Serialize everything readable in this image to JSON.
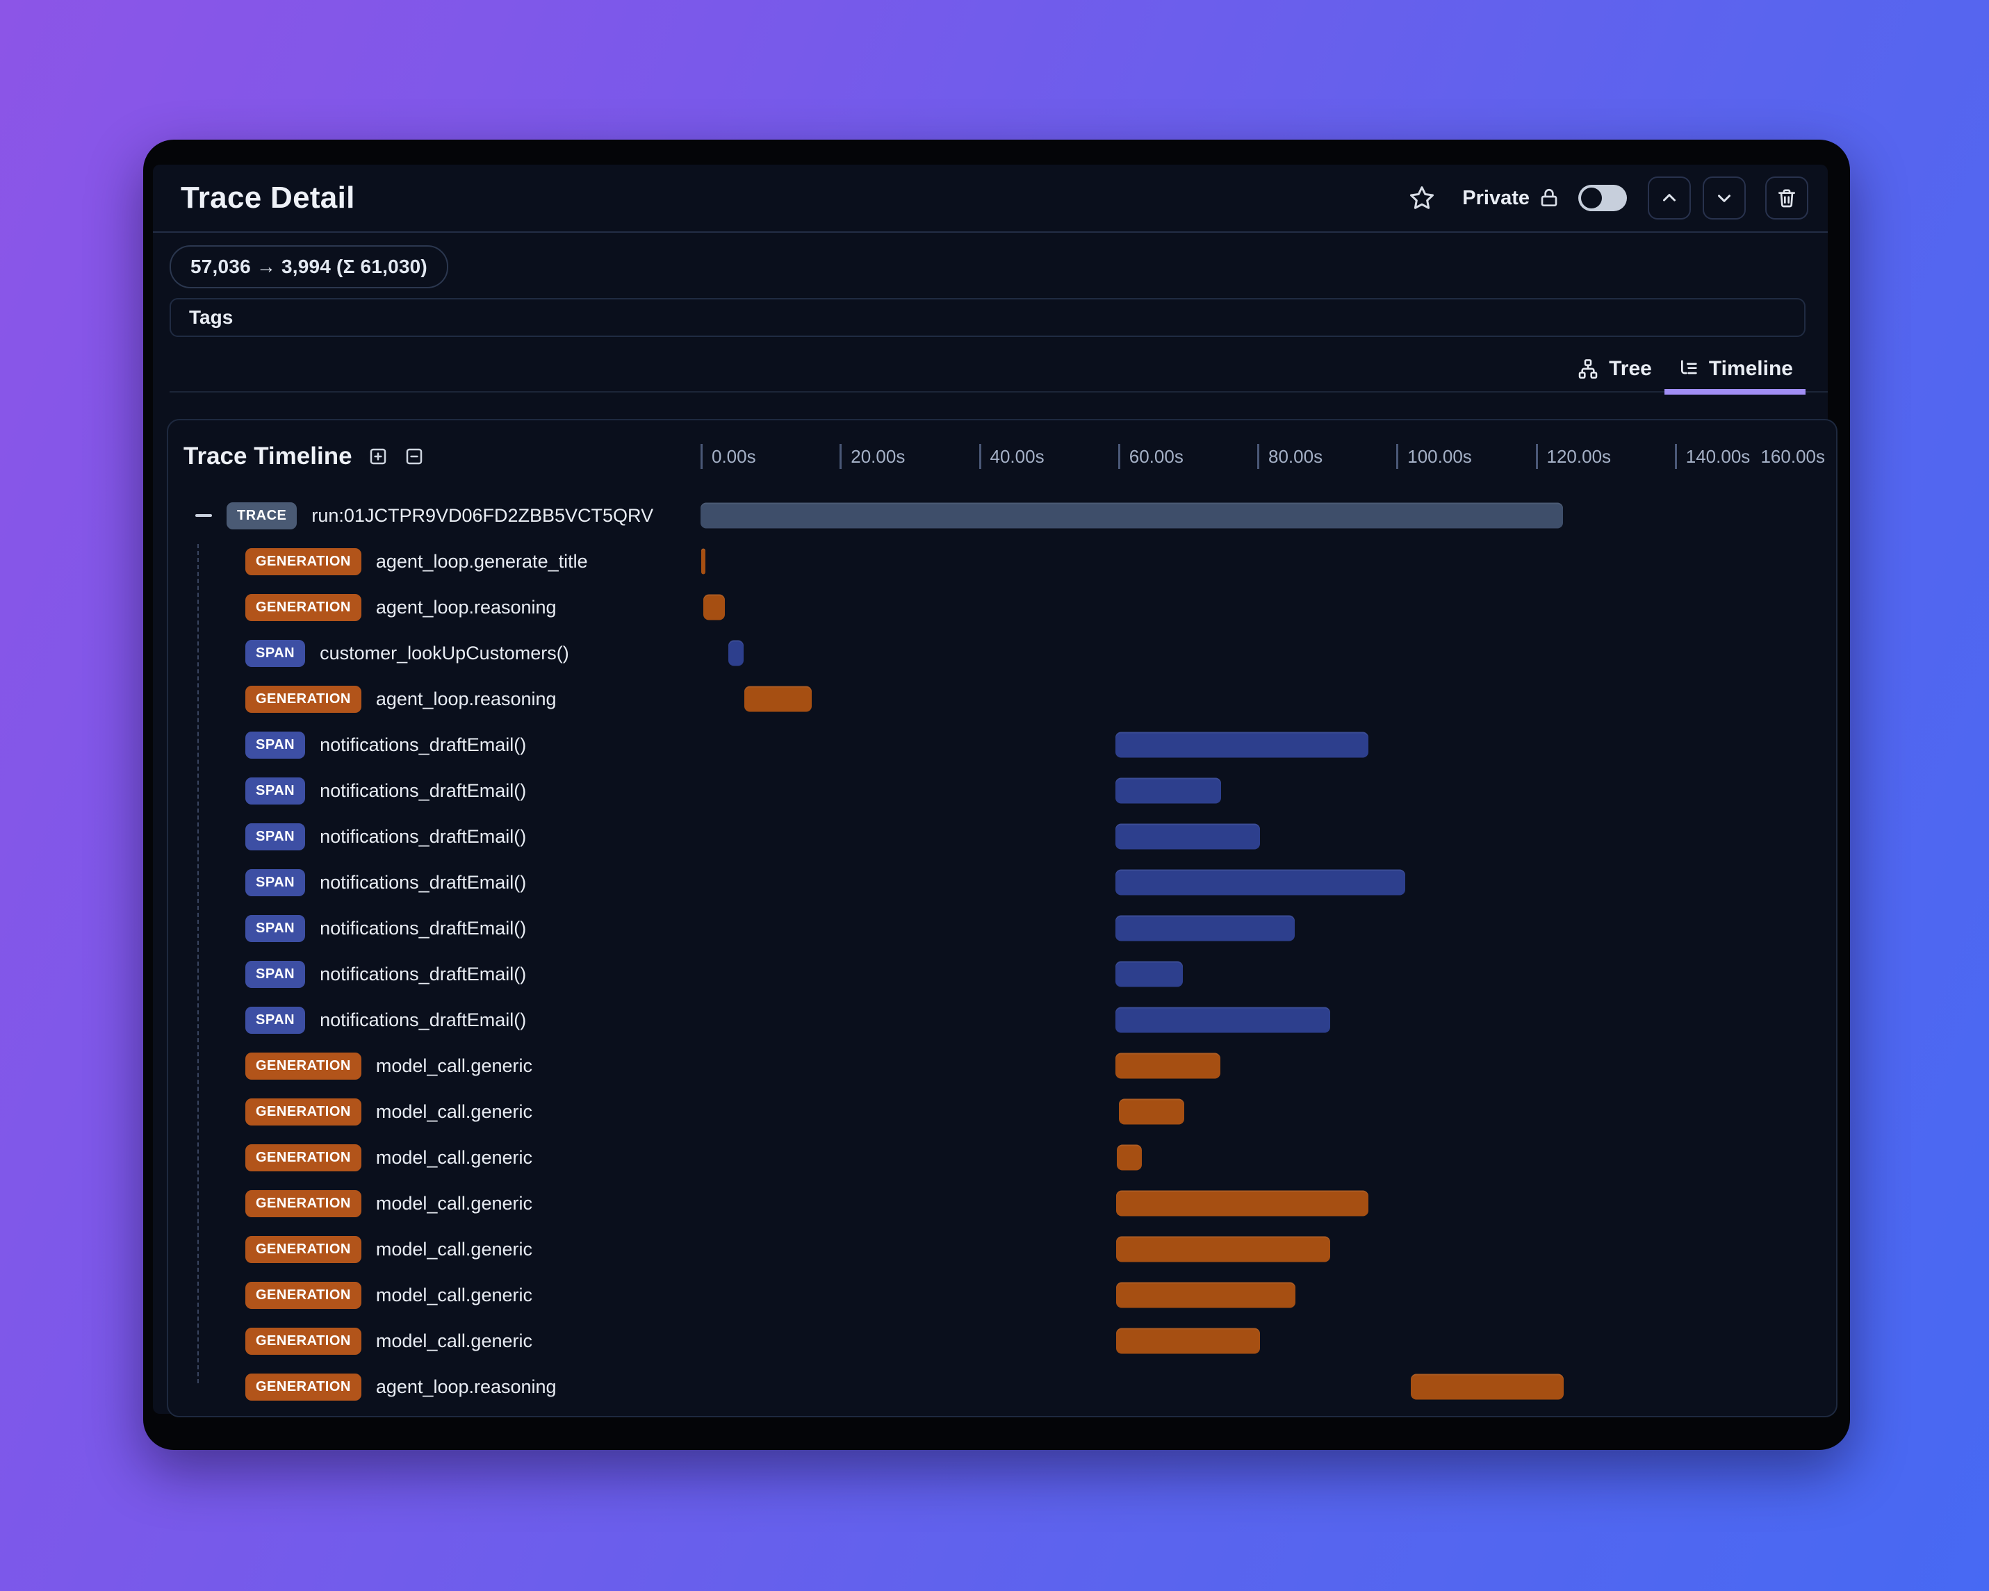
{
  "header": {
    "title": "Trace Detail",
    "privacy_label": "Private",
    "privacy_toggle_state": "off"
  },
  "token_badge": "57,036 → 3,994 (Σ 61,030)",
  "tags": {
    "label": "Tags"
  },
  "view_tabs": [
    {
      "label": "Tree",
      "icon": "tree-icon",
      "active": false
    },
    {
      "label": "Timeline",
      "icon": "list-tree-icon",
      "active": true
    }
  ],
  "timeline": {
    "title": "Trace Timeline",
    "controls": [
      "expand-all-icon",
      "collapse-all-icon"
    ],
    "axis": {
      "total_s": 160,
      "ticks": [
        {
          "t": 0,
          "label": "0.00s"
        },
        {
          "t": 20,
          "label": "20.00s"
        },
        {
          "t": 40,
          "label": "40.00s"
        },
        {
          "t": 60,
          "label": "60.00s"
        },
        {
          "t": 80,
          "label": "80.00s"
        },
        {
          "t": 100,
          "label": "100.00s"
        },
        {
          "t": 120,
          "label": "120.00s"
        },
        {
          "t": 140,
          "label": "140.00s"
        },
        {
          "t": 160,
          "label": "160.00s"
        }
      ]
    },
    "rows": [
      {
        "type": "trace",
        "badge": "TRACE",
        "name": "run:01JCTPR9VD06FD2ZBB5VCT5QRV",
        "start_s": 0,
        "end_s": 123.9,
        "root": true
      },
      {
        "type": "generation",
        "badge": "GENERATION",
        "name": "agent_loop.generate_title",
        "start_s": 0.1,
        "end_s": 0.7
      },
      {
        "type": "generation",
        "badge": "GENERATION",
        "name": "agent_loop.reasoning",
        "start_s": 0.4,
        "end_s": 3.5
      },
      {
        "type": "span",
        "badge": "SPAN",
        "name": "customer_lookUpCustomers()",
        "start_s": 4.0,
        "end_s": 6.2
      },
      {
        "type": "generation",
        "badge": "GENERATION",
        "name": "agent_loop.reasoning",
        "start_s": 6.3,
        "end_s": 16.0
      },
      {
        "type": "span",
        "badge": "SPAN",
        "name": "notifications_draftEmail()",
        "start_s": 59.6,
        "end_s": 96.0
      },
      {
        "type": "span",
        "badge": "SPAN",
        "name": "notifications_draftEmail()",
        "start_s": 59.6,
        "end_s": 74.8
      },
      {
        "type": "span",
        "badge": "SPAN",
        "name": "notifications_draftEmail()",
        "start_s": 59.6,
        "end_s": 80.4
      },
      {
        "type": "span",
        "badge": "SPAN",
        "name": "notifications_draftEmail()",
        "start_s": 59.6,
        "end_s": 101.3
      },
      {
        "type": "span",
        "badge": "SPAN",
        "name": "notifications_draftEmail()",
        "start_s": 59.6,
        "end_s": 85.4
      },
      {
        "type": "span",
        "badge": "SPAN",
        "name": "notifications_draftEmail()",
        "start_s": 59.6,
        "end_s": 69.3
      },
      {
        "type": "span",
        "badge": "SPAN",
        "name": "notifications_draftEmail()",
        "start_s": 59.6,
        "end_s": 90.5
      },
      {
        "type": "generation",
        "badge": "GENERATION",
        "name": "model_call.generic",
        "start_s": 59.6,
        "end_s": 74.7
      },
      {
        "type": "generation",
        "badge": "GENERATION",
        "name": "model_call.generic",
        "start_s": 60.1,
        "end_s": 69.5
      },
      {
        "type": "generation",
        "badge": "GENERATION",
        "name": "model_call.generic",
        "start_s": 59.8,
        "end_s": 63.4
      },
      {
        "type": "generation",
        "badge": "GENERATION",
        "name": "model_call.generic",
        "start_s": 59.7,
        "end_s": 96.0
      },
      {
        "type": "generation",
        "badge": "GENERATION",
        "name": "model_call.generic",
        "start_s": 59.7,
        "end_s": 90.5
      },
      {
        "type": "generation",
        "badge": "GENERATION",
        "name": "model_call.generic",
        "start_s": 59.7,
        "end_s": 85.5
      },
      {
        "type": "generation",
        "badge": "GENERATION",
        "name": "model_call.generic",
        "start_s": 59.7,
        "end_s": 80.4
      },
      {
        "type": "generation",
        "badge": "GENERATION",
        "name": "agent_loop.reasoning",
        "start_s": 102.1,
        "end_s": 124.0
      }
    ]
  },
  "colors": {
    "background_gradient": [
      "#8c55e7",
      "#4769f3"
    ],
    "panel_frame": "#040508",
    "surface": "#0a0f1c",
    "trace_badge": "#4a5a74",
    "trace_bar": "#3e4e6a",
    "generation_badge": "#b2541a",
    "generation_bar": "#a64f12",
    "span_badge": "#3d4fa4",
    "span_bar": "#2d3f8d",
    "active_tab_underline": "#a18ef5",
    "toggle_track": "#c7cfdc"
  }
}
